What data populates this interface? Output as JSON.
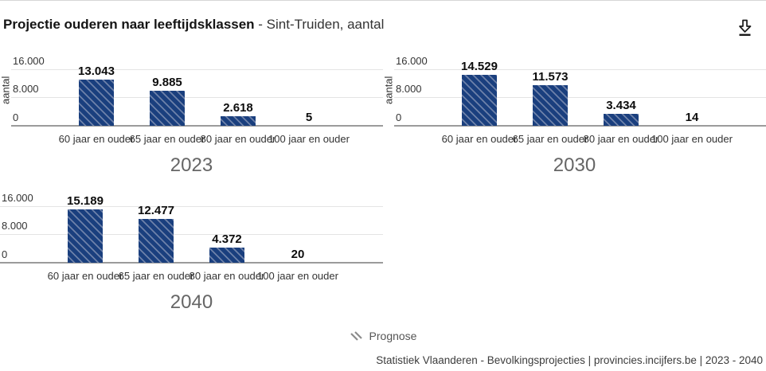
{
  "header": {
    "title_bold": "Projectie ouderen naar leeftijdsklassen",
    "title_rest": " - Sint-Truiden, aantal"
  },
  "chart_data": {
    "type": "bar",
    "title": "Projectie ouderen naar leeftijdsklassen - Sint-Truiden, aantal",
    "categories": [
      "60 jaar en ouder",
      "65 jaar en ouder",
      "80 jaar en ouder",
      "100 jaar en ouder"
    ],
    "ylabel": "aantal",
    "xlabel": "",
    "ylim": [
      0,
      16000
    ],
    "yticks": [
      0,
      8000,
      16000
    ],
    "ytick_labels": [
      "0",
      "8.000",
      "16.000"
    ],
    "grid": true,
    "legend_position": "bottom",
    "series_name": "Prognose",
    "bar_style": "diagonal-hatch",
    "charts": [
      {
        "year": "2023",
        "values": [
          13043,
          9885,
          2618,
          5
        ],
        "value_labels": [
          "13.043",
          "9.885",
          "2.618",
          "5"
        ],
        "show_y_axis_title": true
      },
      {
        "year": "2030",
        "values": [
          14529,
          11573,
          3434,
          14
        ],
        "value_labels": [
          "14.529",
          "11.573",
          "3.434",
          "14"
        ],
        "show_y_axis_title": true
      },
      {
        "year": "2040",
        "values": [
          15189,
          12477,
          4372,
          20
        ],
        "value_labels": [
          "15.189",
          "12.477",
          "4.372",
          "20"
        ],
        "show_y_axis_title": false
      }
    ],
    "colors": {
      "bar": "#1a3f7e",
      "hatch": "#6d81a9",
      "grid": "#e4e4e4",
      "axis": "#9b9b9b"
    }
  },
  "legend": {
    "label": "Prognose",
    "glyph": "diagonal-hatch",
    "color": "#8c8c8c"
  },
  "footer": {
    "source": "Statistiek Vlaanderen - Bevolkingsprojecties | provincies.incijfers.be | 2023 - 2040"
  }
}
